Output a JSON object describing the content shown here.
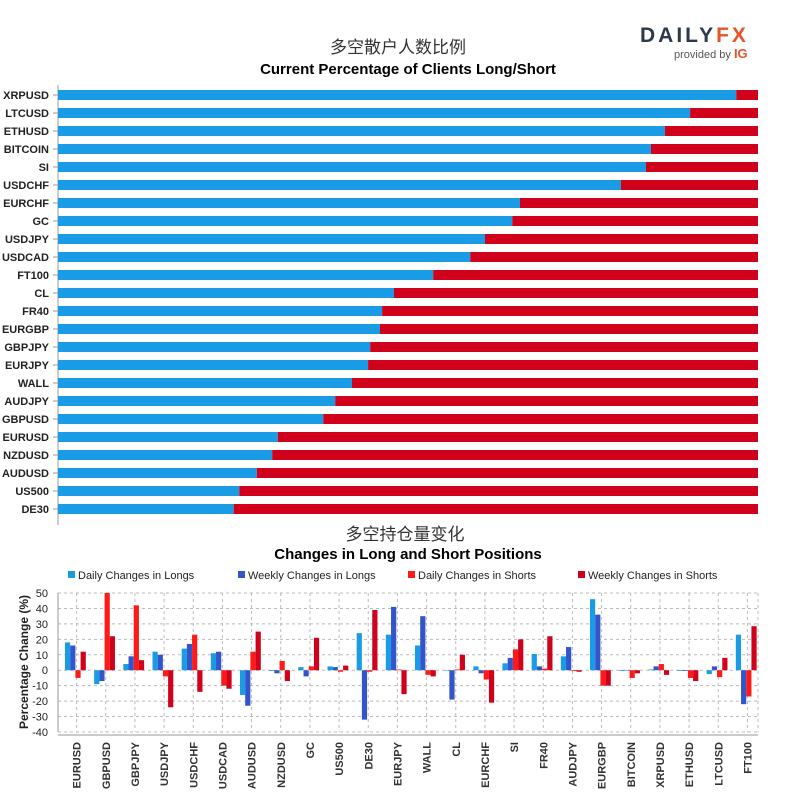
{
  "logo": {
    "main": "DAILY",
    "fx": "FX",
    "sub": "provided by",
    "ig": "IG"
  },
  "colors": {
    "long": "#1a9be6",
    "short": "#d0021b",
    "daily_long": "#1a9be6",
    "weekly_long": "#3355cc",
    "daily_short": "#ff1a1a",
    "weekly_short": "#d0021b"
  },
  "chart_data": [
    {
      "type": "bar",
      "orientation": "horizontal-stacked",
      "title_cn": "多空散户人数比例",
      "title": "Current Percentage of Clients Long/Short",
      "categories": [
        "XRPUSD",
        "LTCUSD",
        "ETHUSD",
        "BITCOIN",
        "SI",
        "USDCHF",
        "EURCHF",
        "GC",
        "USDJPY",
        "USDCAD",
        "FT100",
        "CL",
        "FR40",
        "EURGBP",
        "GBPJPY",
        "EURJPY",
        "WALL",
        "AUDJPY",
        "GBPUSD",
        "EURUSD",
        "NZDUSD",
        "AUDUSD",
        "US500",
        "DE30"
      ],
      "series": [
        {
          "name": "Long",
          "values": [
            96.9,
            90.3,
            86.7,
            84.7,
            84.0,
            80.4,
            66.0,
            64.9,
            61.0,
            58.9,
            53.6,
            48.0,
            46.3,
            46.0,
            44.6,
            44.3,
            42.0,
            39.6,
            37.9,
            31.4,
            30.6,
            28.4,
            25.9,
            25.1
          ]
        },
        {
          "name": "Short",
          "values": [
            3.1,
            9.7,
            13.3,
            15.3,
            16.0,
            19.6,
            34.0,
            35.1,
            39.0,
            41.1,
            46.4,
            52.0,
            53.7,
            54.0,
            55.4,
            55.7,
            58.0,
            60.4,
            62.1,
            68.6,
            69.4,
            71.6,
            74.1,
            74.9
          ]
        }
      ],
      "xlim": [
        0,
        100
      ]
    },
    {
      "type": "bar",
      "title_cn": "多空持仓量变化",
      "title": "Changes in Long and Short Positions",
      "ylabel": "Percentage Change (%)",
      "ylim": [
        -40,
        50
      ],
      "yticks": [
        50,
        40,
        30,
        20,
        10,
        0,
        -10,
        -20,
        -30,
        -40
      ],
      "grid": true,
      "legend_position": "top",
      "categories": [
        "EURUSD",
        "GBPUSD",
        "GBPJPY",
        "USDJPY",
        "USDCHF",
        "USDCAD",
        "AUDUSD",
        "NZDUSD",
        "GC",
        "US500",
        "DE30",
        "EURJPY",
        "WALL",
        "CL",
        "EURCHF",
        "SI",
        "FR40",
        "AUDJPY",
        "EURGBP",
        "BITCOIN",
        "XRPUSD",
        "ETHUSD",
        "LTCUSD",
        "FT100"
      ],
      "series": [
        {
          "name": "Daily Changes in Longs",
          "values": [
            18,
            -9,
            4,
            12,
            14,
            11,
            -16,
            -0.5,
            2,
            2.5,
            24,
            23,
            16,
            0,
            2.5,
            4.5,
            10.5,
            9,
            46,
            -0.5,
            0.5,
            -0.5,
            -2.5,
            23
          ]
        },
        {
          "name": "Weekly Changes in Longs",
          "values": [
            16,
            -7,
            9,
            10,
            17,
            12,
            -23,
            -2,
            -4,
            2,
            -32,
            41,
            35,
            -19,
            -2,
            8,
            2.5,
            15,
            36,
            0,
            2.5,
            -0.5,
            2.5,
            -22
          ]
        },
        {
          "name": "Daily Changes in Shorts",
          "values": [
            -5,
            50,
            42,
            -4,
            23,
            -10,
            12,
            6,
            2.5,
            -1,
            -1,
            0.5,
            -3,
            0.5,
            -6,
            13.5,
            1,
            -0.5,
            -10,
            -5,
            4,
            -5,
            -4.5,
            -17
          ]
        },
        {
          "name": "Weekly Changes in Shorts",
          "values": [
            12,
            22,
            6.5,
            -24,
            -14,
            -12,
            25,
            -7,
            21,
            3,
            39,
            -15.5,
            -4,
            10,
            -21,
            20,
            22,
            -1,
            -10,
            -2,
            -3,
            -7,
            8,
            28.5
          ]
        }
      ]
    }
  ]
}
